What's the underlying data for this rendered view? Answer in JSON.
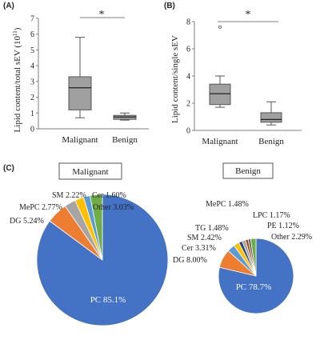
{
  "panels": {
    "A": "(A)",
    "B": "(B)",
    "C": "(C)"
  },
  "colors": {
    "box_fill": "#a0a0a0",
    "axis": "#7f7f7f",
    "text": "#222222",
    "PC": "#4472c4",
    "DG": "#ed7d31",
    "MePC": "#a5a5a5",
    "SM": "#ffc000",
    "Cer": "#5b9bd5",
    "Other": "#70ad47",
    "TG": "#264478",
    "LPC": "#9e480e",
    "PE": "#636363"
  },
  "chart_data": [
    {
      "type": "box",
      "panel": "A",
      "ylabel": "Lipid content/total sEV (10",
      "ylabel_sup": "11",
      "ylabel_end": ")",
      "ylim": [
        0,
        7
      ],
      "yticks": [
        "0",
        "1",
        "2",
        "3",
        "4",
        "5",
        "6",
        "7"
      ],
      "categories": [
        "Malignant",
        "Benign"
      ],
      "boxes": [
        {
          "min": 0.7,
          "q1": 1.2,
          "median": 2.6,
          "q3": 3.3,
          "max": 5.8
        },
        {
          "min": 0.55,
          "q1": 0.6,
          "median": 0.75,
          "q3": 0.85,
          "max": 1.0
        }
      ],
      "outliers": [
        [],
        []
      ],
      "significance": "*"
    },
    {
      "type": "box",
      "panel": "B",
      "ylabel": "Lipid content/single sEV",
      "ylim": [
        0,
        8
      ],
      "yticks": [
        "0",
        "2",
        "4",
        "6",
        "8"
      ],
      "categories": [
        "Malignant",
        "Benign"
      ],
      "boxes": [
        {
          "min": 1.7,
          "q1": 1.9,
          "median": 2.7,
          "q3": 3.4,
          "max": 4.0
        },
        {
          "min": 0.4,
          "q1": 0.6,
          "median": 0.8,
          "q3": 1.3,
          "max": 2.1
        }
      ],
      "outliers": [
        [
          7.6
        ],
        []
      ],
      "significance": "*"
    },
    {
      "type": "pie",
      "panel": "C",
      "title": "Malignant",
      "slices": [
        {
          "name": "PC",
          "value": 85.1,
          "label": "PC 85.1%"
        },
        {
          "name": "DG",
          "value": 5.24,
          "label": "DG 5.24%"
        },
        {
          "name": "MePC",
          "value": 2.77,
          "label": "MePC 2.77%"
        },
        {
          "name": "SM",
          "value": 2.22,
          "label": "SM 2.22%"
        },
        {
          "name": "Cer",
          "value": 1.6,
          "label": "Cer 1.60%"
        },
        {
          "name": "Other",
          "value": 3.03,
          "label": "Other 3.03%"
        }
      ]
    },
    {
      "type": "pie",
      "panel": "C",
      "title": "Benign",
      "slices": [
        {
          "name": "PC",
          "value": 78.7,
          "label": "PC 78.7%"
        },
        {
          "name": "DG",
          "value": 8.0,
          "label": "DG 8.00%"
        },
        {
          "name": "Cer",
          "value": 3.31,
          "label": "Cer 3.31%"
        },
        {
          "name": "SM",
          "value": 2.42,
          "label": "SM 2.42%"
        },
        {
          "name": "TG",
          "value": 1.48,
          "label": "TG 1.48%"
        },
        {
          "name": "MePC",
          "value": 1.48,
          "label": "MePC 1.48%"
        },
        {
          "name": "LPC",
          "value": 1.17,
          "label": "LPC 1.17%"
        },
        {
          "name": "PE",
          "value": 1.12,
          "label": "PE 1.12%"
        },
        {
          "name": "Other",
          "value": 2.29,
          "label": "Other 2.29%"
        }
      ]
    }
  ]
}
